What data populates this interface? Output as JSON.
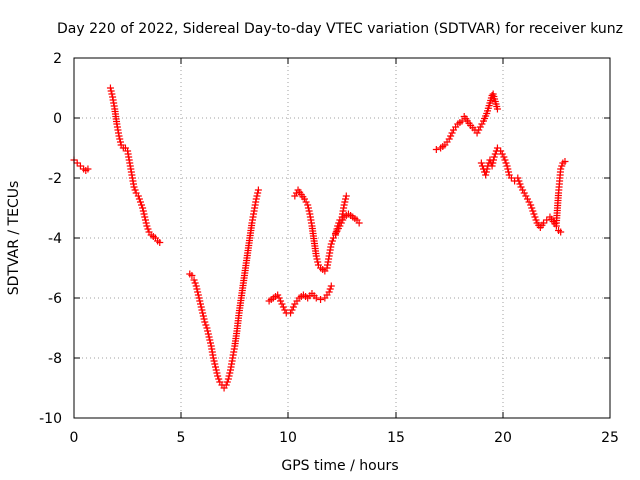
{
  "chart_data": {
    "type": "scatter",
    "title": "Day 220 of 2022, Sidereal Day-to-day VTEC variation (SDTVAR) for receiver kunz",
    "xlabel": "GPS time / hours",
    "ylabel": "SDTVAR / TECUs",
    "xlim": [
      0,
      25
    ],
    "ylim": [
      -10,
      2
    ],
    "xticks": [
      "0",
      "5",
      "10",
      "15",
      "20",
      "25"
    ],
    "yticks": [
      "2",
      "0",
      "-2",
      "-4",
      "-6",
      "-8",
      "-10"
    ],
    "grid": true,
    "marker": "+",
    "color": "#ff0000",
    "segments": [
      {
        "points": [
          [
            0.0,
            -1.4
          ],
          [
            0.15,
            -1.5
          ],
          [
            0.3,
            -1.6
          ],
          [
            0.45,
            -1.7
          ],
          [
            0.55,
            -1.75
          ],
          [
            0.65,
            -1.7
          ]
        ]
      },
      {
        "points": [
          [
            1.7,
            1.0
          ],
          [
            1.8,
            0.7
          ],
          [
            1.9,
            0.3
          ],
          [
            2.0,
            -0.2
          ],
          [
            2.1,
            -0.6
          ],
          [
            2.2,
            -0.9
          ],
          [
            2.3,
            -1.0
          ],
          [
            2.4,
            -1.0
          ],
          [
            2.5,
            -1.1
          ],
          [
            2.6,
            -1.5
          ],
          [
            2.7,
            -1.9
          ],
          [
            2.8,
            -2.3
          ],
          [
            2.9,
            -2.5
          ],
          [
            3.0,
            -2.6
          ],
          [
            3.1,
            -2.8
          ],
          [
            3.2,
            -3.0
          ],
          [
            3.3,
            -3.3
          ],
          [
            3.4,
            -3.6
          ],
          [
            3.5,
            -3.8
          ],
          [
            3.6,
            -3.9
          ],
          [
            3.7,
            -3.95
          ],
          [
            3.8,
            -4.0
          ],
          [
            3.9,
            -4.1
          ],
          [
            4.0,
            -4.15
          ]
        ]
      },
      {
        "points": [
          [
            5.4,
            -5.2
          ],
          [
            5.5,
            -5.25
          ],
          [
            5.6,
            -5.4
          ],
          [
            5.7,
            -5.6
          ],
          [
            5.8,
            -5.9
          ],
          [
            5.9,
            -6.2
          ],
          [
            6.0,
            -6.5
          ],
          [
            6.1,
            -6.8
          ],
          [
            6.2,
            -7.0
          ],
          [
            6.3,
            -7.3
          ],
          [
            6.4,
            -7.6
          ],
          [
            6.5,
            -8.0
          ],
          [
            6.6,
            -8.3
          ],
          [
            6.7,
            -8.6
          ],
          [
            6.8,
            -8.8
          ],
          [
            6.9,
            -8.9
          ],
          [
            7.0,
            -9.0
          ],
          [
            7.1,
            -8.9
          ],
          [
            7.2,
            -8.7
          ],
          [
            7.3,
            -8.4
          ],
          [
            7.4,
            -8.0
          ],
          [
            7.5,
            -7.6
          ],
          [
            7.6,
            -7.1
          ],
          [
            7.7,
            -6.5
          ],
          [
            7.8,
            -6.0
          ],
          [
            7.9,
            -5.5
          ],
          [
            8.0,
            -5.0
          ],
          [
            8.1,
            -4.5
          ],
          [
            8.2,
            -4.0
          ],
          [
            8.3,
            -3.5
          ],
          [
            8.4,
            -3.1
          ],
          [
            8.5,
            -2.7
          ],
          [
            8.6,
            -2.4
          ]
        ]
      },
      {
        "points": [
          [
            9.1,
            -6.1
          ],
          [
            9.3,
            -6.0
          ],
          [
            9.5,
            -5.9
          ],
          [
            9.7,
            -6.2
          ],
          [
            9.9,
            -6.5
          ],
          [
            10.1,
            -6.5
          ],
          [
            10.3,
            -6.2
          ],
          [
            10.5,
            -6.0
          ],
          [
            10.7,
            -5.9
          ],
          [
            10.9,
            -6.0
          ],
          [
            11.1,
            -5.85
          ],
          [
            11.3,
            -6.0
          ],
          [
            11.5,
            -6.05
          ],
          [
            11.7,
            -6.0
          ],
          [
            11.9,
            -5.8
          ],
          [
            12.0,
            -5.6
          ]
        ]
      },
      {
        "points": [
          [
            10.3,
            -2.6
          ],
          [
            10.45,
            -2.4
          ],
          [
            10.6,
            -2.55
          ],
          [
            10.75,
            -2.7
          ],
          [
            10.9,
            -2.9
          ],
          [
            11.0,
            -3.2
          ],
          [
            11.1,
            -3.6
          ],
          [
            11.2,
            -4.1
          ],
          [
            11.3,
            -4.6
          ],
          [
            11.4,
            -4.9
          ],
          [
            11.5,
            -5.0
          ],
          [
            11.6,
            -5.05
          ],
          [
            11.7,
            -5.1
          ],
          [
            11.8,
            -5.0
          ],
          [
            11.9,
            -4.6
          ],
          [
            12.0,
            -4.2
          ],
          [
            12.1,
            -4.0
          ],
          [
            12.2,
            -3.9
          ],
          [
            12.3,
            -3.6
          ],
          [
            12.4,
            -3.4
          ],
          [
            12.5,
            -3.3
          ],
          [
            12.6,
            -2.9
          ],
          [
            12.7,
            -2.6
          ]
        ]
      },
      {
        "points": [
          [
            12.2,
            -3.85
          ],
          [
            12.4,
            -3.6
          ],
          [
            12.6,
            -3.3
          ],
          [
            12.8,
            -3.2
          ],
          [
            13.0,
            -3.3
          ],
          [
            13.2,
            -3.4
          ],
          [
            13.3,
            -3.5
          ]
        ]
      },
      {
        "points": [
          [
            16.9,
            -1.05
          ],
          [
            17.1,
            -1.0
          ],
          [
            17.3,
            -0.9
          ],
          [
            17.5,
            -0.7
          ],
          [
            17.7,
            -0.4
          ],
          [
            17.9,
            -0.2
          ],
          [
            18.1,
            -0.1
          ],
          [
            18.2,
            0.05
          ],
          [
            18.35,
            -0.1
          ],
          [
            18.5,
            -0.25
          ],
          [
            18.7,
            -0.4
          ],
          [
            18.8,
            -0.5
          ],
          [
            18.95,
            -0.3
          ],
          [
            19.1,
            -0.1
          ],
          [
            19.25,
            0.15
          ],
          [
            19.4,
            0.5
          ],
          [
            19.5,
            0.75
          ],
          [
            19.55,
            0.8
          ],
          [
            19.65,
            0.55
          ],
          [
            19.75,
            0.3
          ]
        ]
      },
      {
        "points": [
          [
            19.0,
            -1.5
          ],
          [
            19.1,
            -1.7
          ],
          [
            19.2,
            -1.9
          ],
          [
            19.3,
            -1.6
          ],
          [
            19.4,
            -1.4
          ],
          [
            19.5,
            -1.6
          ],
          [
            19.6,
            -1.3
          ],
          [
            19.75,
            -1.0
          ],
          [
            19.9,
            -1.1
          ],
          [
            20.05,
            -1.3
          ],
          [
            20.2,
            -1.6
          ],
          [
            20.3,
            -1.9
          ],
          [
            20.4,
            -2.0
          ],
          [
            20.55,
            -2.1
          ],
          [
            20.7,
            -2.0
          ],
          [
            20.85,
            -2.3
          ],
          [
            21.0,
            -2.5
          ],
          [
            21.15,
            -2.7
          ],
          [
            21.3,
            -2.9
          ],
          [
            21.45,
            -3.2
          ],
          [
            21.6,
            -3.5
          ],
          [
            21.75,
            -3.65
          ],
          [
            21.9,
            -3.5
          ],
          [
            22.05,
            -3.4
          ],
          [
            22.2,
            -3.3
          ],
          [
            22.35,
            -3.45
          ],
          [
            22.5,
            -3.6
          ],
          [
            22.6,
            -3.75
          ],
          [
            22.7,
            -3.8
          ]
        ]
      },
      {
        "points": [
          [
            22.5,
            -3.5
          ],
          [
            22.55,
            -3.0
          ],
          [
            22.6,
            -2.5
          ],
          [
            22.65,
            -2.1
          ],
          [
            22.7,
            -1.7
          ],
          [
            22.8,
            -1.5
          ],
          [
            22.9,
            -1.45
          ]
        ]
      }
    ]
  }
}
